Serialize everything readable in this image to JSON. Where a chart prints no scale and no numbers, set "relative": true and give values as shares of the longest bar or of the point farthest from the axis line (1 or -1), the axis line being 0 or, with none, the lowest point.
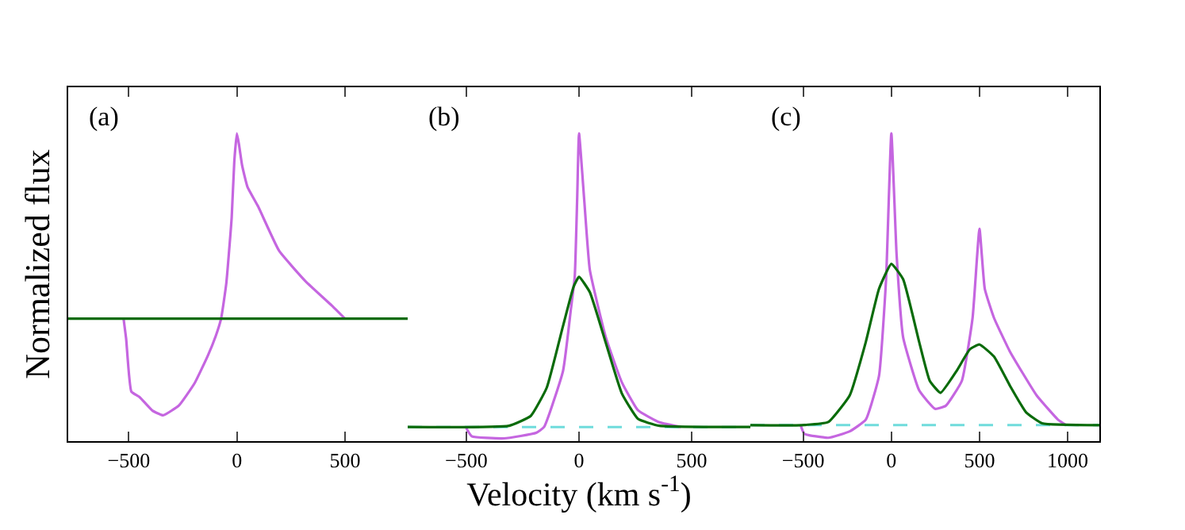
{
  "chart_data": [
    {
      "type": "line",
      "relative": true,
      "tick_labels": "x",
      "ylabel": "Normalized flux",
      "annotations": [
        "(a)"
      ],
      "xlim": [
        -780,
        790
      ],
      "xticks": [
        -500,
        0,
        500
      ],
      "marker": "none",
      "line_style": "solid",
      "series": [
        {
          "color": "#c566e0",
          "x": [
            -524,
            -512,
            -488,
            -451,
            -390,
            -341,
            -268,
            -195,
            -134,
            -98,
            -73,
            -49,
            -24,
            -12,
            0,
            10,
            24,
            49,
            98,
            195,
            317,
            440,
            500
          ],
          "values": [
            0.398,
            0.332,
            0.161,
            0.144,
            0.099,
            0.084,
            0.116,
            0.189,
            0.278,
            0.341,
            0.398,
            0.512,
            0.727,
            0.907,
            1,
            0.963,
            0.897,
            0.826,
            0.763,
            0.619,
            0.52,
            0.44,
            0.398
          ]
        },
        {
          "color": "#0a6b0a",
          "x": [
            -780,
            790
          ],
          "values": [
            0.398,
            0.398
          ]
        }
      ]
    },
    {
      "type": "line",
      "relative": true,
      "tick_labels": "x",
      "xlabel": "Velocity (km s$^{-1}$)",
      "annotations": [
        "(b)"
      ],
      "xlim": [
        -760,
        760
      ],
      "xticks": [
        -500,
        0,
        500
      ],
      "marker": "none",
      "line_style": "solid",
      "ref_lines": [
        {
          "axis": "y",
          "value": 0.046,
          "color": "#6fdcdc",
          "line_style": "dashed"
        }
      ],
      "series": [
        {
          "color": "#c566e0",
          "x": [
            -500,
            -476,
            -333,
            -190,
            -155,
            -71,
            -36,
            -19,
            -8,
            0,
            24,
            48,
            119,
            190,
            262,
            357,
            452
          ],
          "values": [
            0.042,
            0.016,
            0.009,
            0.027,
            0.046,
            0.228,
            0.429,
            0.534,
            0.792,
            1,
            0.775,
            0.556,
            0.337,
            0.191,
            0.1,
            0.061,
            0.046
          ]
        },
        {
          "color": "#0a6b0a",
          "x": [
            -760,
            -310,
            -214,
            -143,
            -71,
            -24,
            0,
            48,
            119,
            190,
            262,
            357,
            760
          ],
          "values": [
            0.046,
            0.05,
            0.082,
            0.174,
            0.374,
            0.502,
            0.534,
            0.484,
            0.319,
            0.155,
            0.072,
            0.05,
            0.046
          ]
        }
      ]
    },
    {
      "type": "line",
      "relative": true,
      "tick_labels": "x",
      "annotations": [
        "(c)"
      ],
      "xlim": [
        -800,
        1180
      ],
      "xticks": [
        -500,
        0,
        500,
        1000
      ],
      "marker": "none",
      "line_style": "solid",
      "ref_lines": [
        {
          "axis": "y",
          "value": 0.052,
          "color": "#6fdcdc",
          "line_style": "dashed"
        }
      ],
      "series": [
        {
          "color": "#c566e0",
          "x": [
            -515,
            -494,
            -358,
            -236,
            -145,
            -70,
            -30,
            0,
            30,
            67,
            158,
            248,
            309,
            400,
            461,
            500,
            530,
            582,
            673,
            824,
            945,
            991
          ],
          "values": [
            0.052,
            0.024,
            0.011,
            0.032,
            0.07,
            0.212,
            0.526,
            1,
            0.604,
            0.337,
            0.165,
            0.105,
            0.115,
            0.196,
            0.401,
            0.69,
            0.495,
            0.401,
            0.291,
            0.149,
            0.07,
            0.052
          ]
        },
        {
          "color": "#0a6b0a",
          "x": [
            -800,
            -509,
            -358,
            -236,
            -145,
            -70,
            0,
            67,
            158,
            218,
            279,
            370,
            445,
            500,
            582,
            673,
            764,
            855,
            1180
          ],
          "values": [
            0.052,
            0.052,
            0.062,
            0.149,
            0.322,
            0.495,
            0.576,
            0.526,
            0.322,
            0.196,
            0.157,
            0.228,
            0.298,
            0.314,
            0.275,
            0.18,
            0.094,
            0.058,
            0.052
          ]
        }
      ]
    }
  ]
}
